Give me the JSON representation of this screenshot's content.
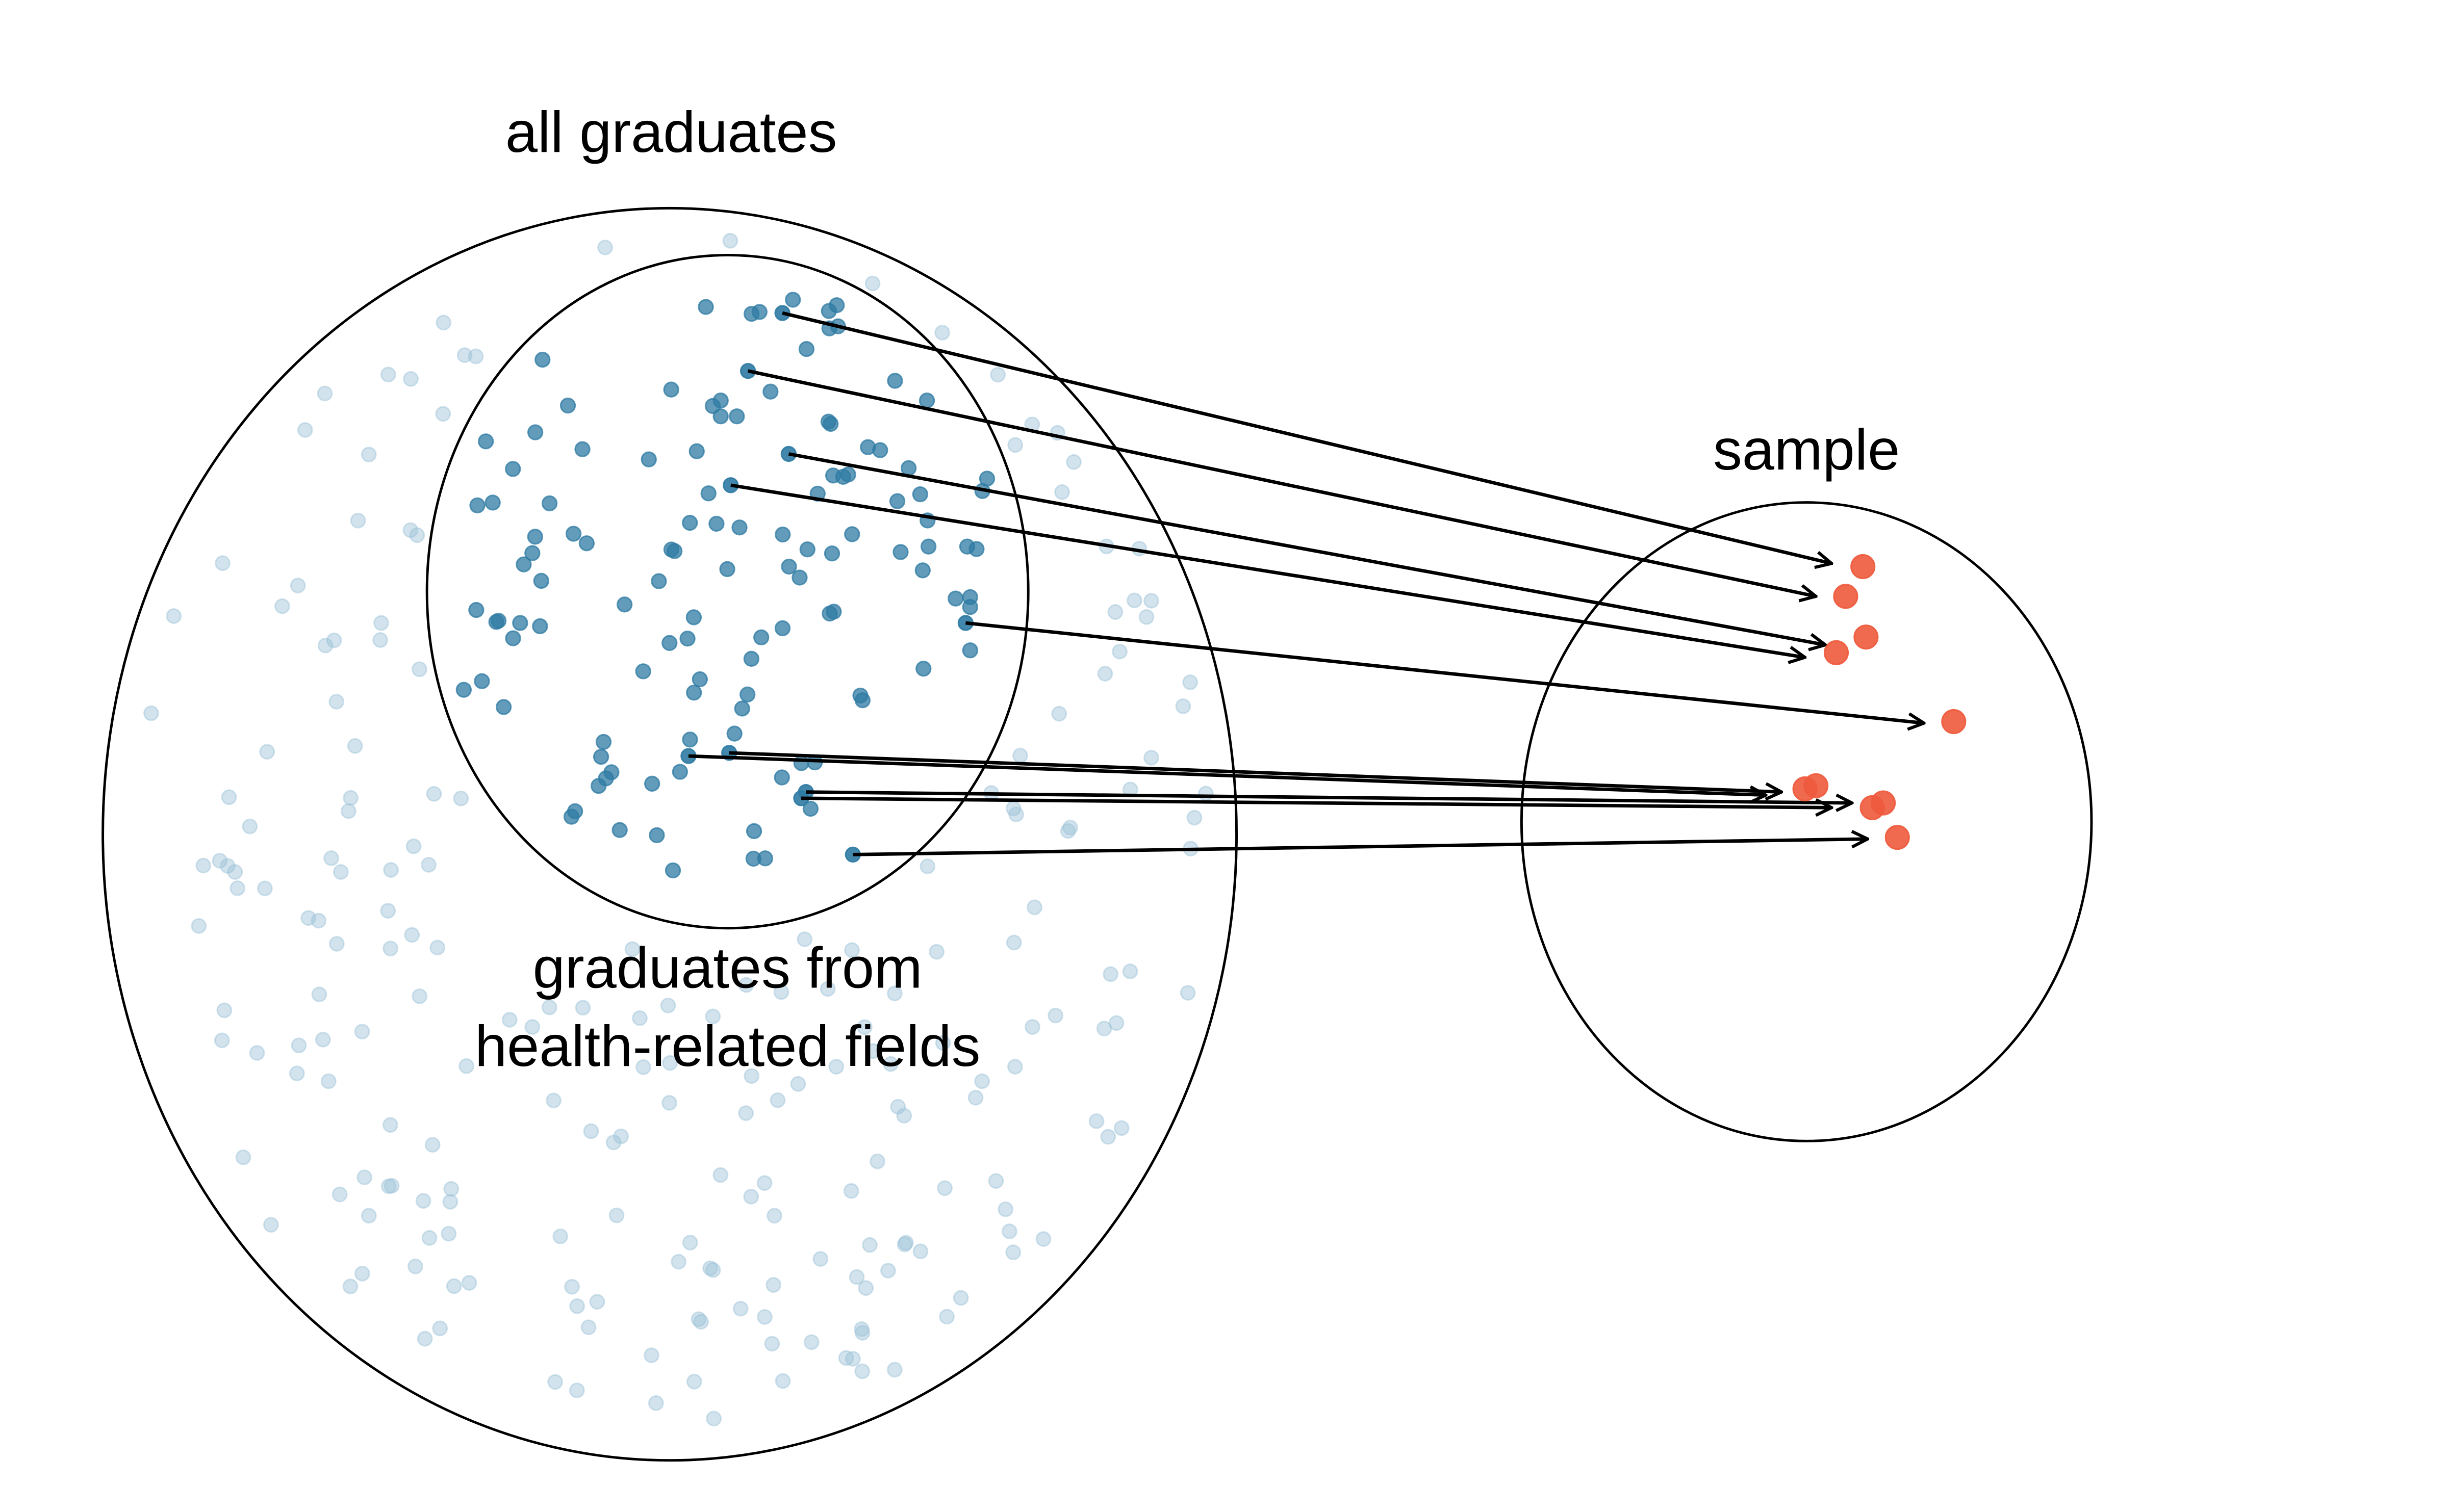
{
  "labels": {
    "population": "all graduates",
    "subpopulation_line1": "graduates from",
    "subpopulation_line2": "health-related fields",
    "sample": "sample"
  },
  "colors": {
    "background_dots": "#9bc2d6",
    "population_dots": "#2f7ba3",
    "sample_dots": "#ee5a3c",
    "lines": "#000000"
  },
  "counts": {
    "subpopulation_dots": 118,
    "background_dots": 215,
    "sample_dots": 10
  }
}
